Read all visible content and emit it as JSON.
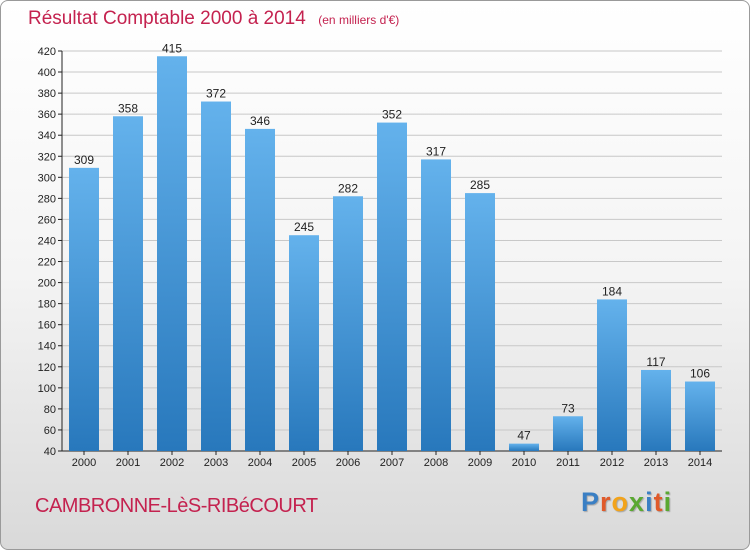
{
  "title": "Résultat Comptable 2000 à 2014",
  "subtitle": "(en milliers d'€)",
  "commune": "CAMBRONNE-LèS-RIBéCOURT",
  "logo": {
    "text": "Proxiti",
    "letters": [
      {
        "ch": "P",
        "color": "#3a7fc4"
      },
      {
        "ch": "r",
        "color": "#e05a2a"
      },
      {
        "ch": "o",
        "color": "#f2a31b"
      },
      {
        "ch": "x",
        "color": "#5aa832"
      },
      {
        "ch": "i",
        "color": "#3a7fc4"
      },
      {
        "ch": "t",
        "color": "#e05a2a"
      },
      {
        "ch": "i",
        "color": "#5aa832"
      }
    ]
  },
  "colors": {
    "title": "#c4224f",
    "bar_top": "#64b2ec",
    "bar_bottom": "#2878bc",
    "grid": "#c8c8c8",
    "axis": "#222222"
  },
  "chart_data": {
    "type": "bar",
    "title": "Résultat Comptable 2000 à 2014",
    "xlabel": "",
    "ylabel": "",
    "categories": [
      "2000",
      "2001",
      "2002",
      "2003",
      "2004",
      "2005",
      "2006",
      "2007",
      "2008",
      "2009",
      "2010",
      "2011",
      "2012",
      "2013",
      "2014"
    ],
    "values": [
      309,
      358,
      415,
      372,
      346,
      245,
      282,
      352,
      317,
      285,
      47,
      73,
      184,
      117,
      106
    ],
    "ylim": [
      40,
      420
    ],
    "ytick_step": 20,
    "grid": true
  }
}
